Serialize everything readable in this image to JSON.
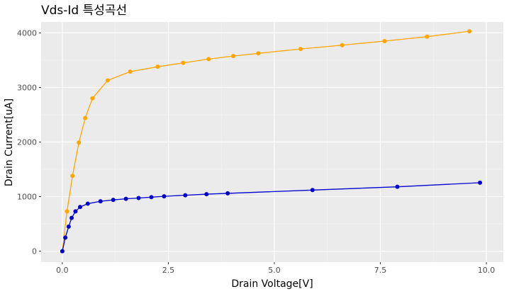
{
  "chart_data": {
    "type": "line",
    "title": "Vds-Id 특성곡선",
    "xlabel": "Drain Voltage[V]",
    "ylabel": "Drain Current[uA]",
    "xlim": [
      -0.5,
      10.4
    ],
    "ylim": [
      -200,
      4200
    ],
    "x_ticks": [
      0,
      2.5,
      5,
      7.5,
      10
    ],
    "x_tick_labels": [
      "0.0",
      "2.5",
      "5.0",
      "7.5",
      "10.0"
    ],
    "y_ticks": [
      0,
      1000,
      2000,
      3000,
      4000
    ],
    "y_tick_labels": [
      "0",
      "1000",
      "2000",
      "3000",
      "4000"
    ],
    "grid": true,
    "legend": "none",
    "series": [
      {
        "color": "#ffa500",
        "points": [
          [
            0.0,
            0
          ],
          [
            0.11,
            730
          ],
          [
            0.24,
            1380
          ],
          [
            0.39,
            1990
          ],
          [
            0.54,
            2440
          ],
          [
            0.71,
            2800
          ],
          [
            1.07,
            3130
          ],
          [
            1.6,
            3290
          ],
          [
            2.25,
            3380
          ],
          [
            2.85,
            3450
          ],
          [
            3.45,
            3520
          ],
          [
            4.03,
            3575
          ],
          [
            4.62,
            3625
          ],
          [
            5.62,
            3705
          ],
          [
            6.6,
            3775
          ],
          [
            7.6,
            3850
          ],
          [
            8.6,
            3930
          ],
          [
            9.6,
            4030
          ]
        ]
      },
      {
        "color": "#0000cd",
        "points": [
          [
            0.0,
            0
          ],
          [
            0.07,
            250
          ],
          [
            0.15,
            450
          ],
          [
            0.22,
            610
          ],
          [
            0.31,
            730
          ],
          [
            0.42,
            810
          ],
          [
            0.6,
            870
          ],
          [
            0.9,
            915
          ],
          [
            1.2,
            940
          ],
          [
            1.5,
            960
          ],
          [
            1.8,
            975
          ],
          [
            2.1,
            990
          ],
          [
            2.4,
            1005
          ],
          [
            2.9,
            1025
          ],
          [
            3.4,
            1045
          ],
          [
            3.9,
            1060
          ],
          [
            5.9,
            1120
          ],
          [
            7.9,
            1180
          ],
          [
            9.85,
            1255
          ]
        ]
      }
    ]
  }
}
